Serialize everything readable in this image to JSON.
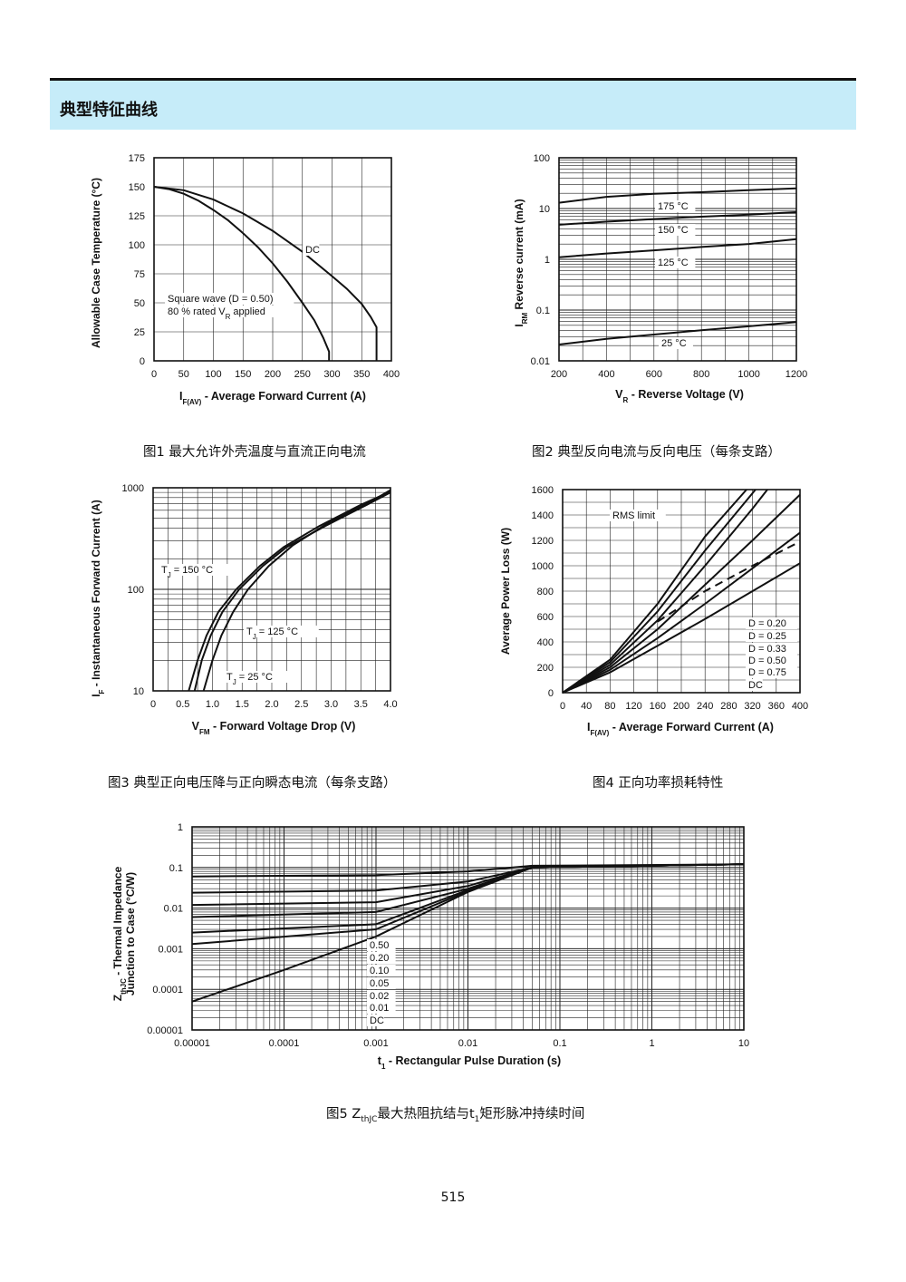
{
  "section": {
    "title": "典型特征曲线"
  },
  "page_number": "515",
  "chart_data": [
    {
      "id": "fig1",
      "type": "line",
      "caption": "图1 最大允许外壳温度与直流正向电流",
      "xlabel": "I_F(AV) - Average Forward Current (A)",
      "ylabel": "Allowable Case Temperature (°C)",
      "xlim": [
        0,
        400
      ],
      "ylim": [
        0,
        175
      ],
      "xticks": [
        0,
        50,
        100,
        150,
        200,
        250,
        300,
        350,
        400
      ],
      "yticks": [
        0,
        25,
        50,
        75,
        100,
        125,
        150,
        175
      ],
      "grid": true,
      "annotations": [
        "DC",
        "Square wave (D = 0.50)",
        "80 % rated V_R applied"
      ],
      "series": [
        {
          "name": "Square wave (D = 0.50)",
          "x": [
            0,
            25,
            50,
            75,
            100,
            125,
            150,
            175,
            200,
            225,
            250,
            270,
            285,
            295,
            295
          ],
          "y": [
            150,
            148,
            144,
            138,
            130,
            121,
            110,
            98,
            84,
            68,
            50,
            35,
            20,
            8,
            0
          ]
        },
        {
          "name": "DC",
          "x": [
            0,
            50,
            100,
            150,
            200,
            250,
            300,
            325,
            350,
            365,
            375,
            375
          ],
          "y": [
            150,
            147,
            139,
            127,
            112,
            94,
            73,
            62,
            49,
            38,
            29,
            0
          ]
        }
      ]
    },
    {
      "id": "fig2",
      "type": "line",
      "caption": "图2 典型反向电流与反向电压（每条支路）",
      "xlabel": "V_R - Reverse Voltage (V)",
      "ylabel": "I_RM Reverse current (mA)",
      "yscale": "log",
      "xlim": [
        200,
        1200
      ],
      "ylim": [
        0.01,
        100
      ],
      "xticks": [
        200,
        400,
        600,
        800,
        1000,
        1200
      ],
      "yticks": [
        "0.01",
        "0.1",
        "1",
        "10",
        "100"
      ],
      "grid": true,
      "series": [
        {
          "name": "175 °C",
          "x": [
            200,
            400,
            600,
            800,
            1000,
            1200
          ],
          "y": [
            13,
            17,
            19.5,
            21,
            23,
            25
          ]
        },
        {
          "name": "150 °C",
          "x": [
            200,
            400,
            600,
            800,
            1000,
            1200
          ],
          "y": [
            4.8,
            5.5,
            6.2,
            6.9,
            7.6,
            8.5
          ]
        },
        {
          "name": "125 °C",
          "x": [
            200,
            400,
            600,
            800,
            1000,
            1200
          ],
          "y": [
            1.1,
            1.3,
            1.5,
            1.75,
            2.0,
            2.5
          ]
        },
        {
          "name": "25 °C",
          "x": [
            200,
            400,
            600,
            800,
            1000,
            1200
          ],
          "y": [
            0.021,
            0.027,
            0.033,
            0.04,
            0.048,
            0.058
          ]
        }
      ]
    },
    {
      "id": "fig3",
      "type": "line",
      "caption": "图3 典型正向电压降与正向瞬态电流（每条支路）",
      "xlabel": "V_FM - Forward Voltage Drop (V)",
      "ylabel": "I_F - Instantaneous Forward Current (A)",
      "yscale": "log",
      "xlim": [
        0,
        4.0
      ],
      "ylim": [
        10,
        1000
      ],
      "xticks": [
        "0",
        "0.5",
        "1.0",
        "1.5",
        "2.0",
        "2.5",
        "3.0",
        "3.5",
        "4.0"
      ],
      "yticks": [
        "10",
        "100",
        "1000"
      ],
      "grid": true,
      "series": [
        {
          "name": "T_J = 150 °C",
          "x": [
            0.6,
            0.75,
            0.9,
            1.1,
            1.4,
            1.8,
            2.2,
            2.8,
            3.5,
            4.0
          ],
          "y": [
            10,
            20,
            35,
            60,
            100,
            170,
            260,
            420,
            680,
            920
          ]
        },
        {
          "name": "T_J = 125 °C",
          "x": [
            0.7,
            0.82,
            0.97,
            1.17,
            1.45,
            1.85,
            2.25,
            2.9,
            3.6,
            4.0
          ],
          "y": [
            10,
            20,
            35,
            60,
            100,
            170,
            260,
            420,
            680,
            900
          ]
        },
        {
          "name": "T_J = 25 °C",
          "x": [
            0.85,
            1.0,
            1.15,
            1.35,
            1.6,
            1.95,
            2.35,
            2.95,
            3.65,
            4.0
          ],
          "y": [
            10,
            20,
            35,
            60,
            100,
            170,
            270,
            450,
            720,
            950
          ]
        }
      ]
    },
    {
      "id": "fig4",
      "type": "line",
      "caption": "图4 正向功率损耗特性",
      "xlabel": "I_F(AV) - Average Forward Current (A)",
      "ylabel": "Average Power Loss (W)",
      "xlim": [
        0,
        400
      ],
      "ylim": [
        0,
        1600
      ],
      "xticks": [
        0,
        40,
        80,
        120,
        160,
        200,
        240,
        280,
        320,
        360,
        400
      ],
      "yticks": [
        0,
        200,
        400,
        600,
        800,
        1000,
        1200,
        1400,
        1600
      ],
      "grid": true,
      "annotations": [
        "RMS limit"
      ],
      "series": [
        {
          "name": "D = 0.20",
          "x": [
            0,
            80,
            160,
            240,
            310
          ],
          "y": [
            0,
            260,
            700,
            1230,
            1600
          ]
        },
        {
          "name": "D = 0.25",
          "x": [
            0,
            80,
            160,
            240,
            325
          ],
          "y": [
            0,
            240,
            640,
            1120,
            1600
          ]
        },
        {
          "name": "D = 0.33",
          "x": [
            0,
            80,
            160,
            240,
            320,
            345
          ],
          "y": [
            0,
            220,
            570,
            1000,
            1450,
            1600
          ]
        },
        {
          "name": "D = 0.50",
          "x": [
            0,
            80,
            160,
            240,
            320,
            400
          ],
          "y": [
            0,
            200,
            500,
            850,
            1200,
            1560
          ]
        },
        {
          "name": "D = 0.75",
          "x": [
            0,
            80,
            160,
            240,
            320,
            400
          ],
          "y": [
            0,
            180,
            430,
            700,
            980,
            1260
          ]
        },
        {
          "name": "DC",
          "x": [
            0,
            80,
            160,
            240,
            320,
            400
          ],
          "y": [
            0,
            160,
            370,
            580,
            800,
            1020
          ]
        },
        {
          "name": "RMS limit",
          "x": [
            160,
            240,
            320,
            400
          ],
          "y": [
            560,
            800,
            1000,
            1190
          ]
        }
      ]
    },
    {
      "id": "fig5",
      "type": "line",
      "caption_prefix": "图5 Z",
      "caption_sub": "thJC",
      "caption_mid": "最大热阻抗结与t",
      "caption_sub2": "1",
      "caption_suffix": "矩形脉冲持续时间",
      "xlabel": "t_1 - Rectangular Pulse Duration (s)",
      "ylabel": "Z_thJC - Thermal Impedance Junction to Case (°C/W)",
      "xscale": "log",
      "yscale": "log",
      "xlim": [
        1e-05,
        10
      ],
      "ylim": [
        1e-05,
        1
      ],
      "xticks": [
        "0.00001",
        "0.0001",
        "0.001",
        "0.01",
        "0.1",
        "1",
        "10"
      ],
      "yticks": [
        "0.00001",
        "0.0001",
        "0.001",
        "0.01",
        "0.1",
        "1"
      ],
      "grid": true,
      "series": [
        {
          "name": "0.50",
          "x": [
            1e-05,
            0.001,
            0.01,
            0.05,
            10
          ],
          "y": [
            0.06,
            0.065,
            0.08,
            0.11,
            0.12
          ]
        },
        {
          "name": "0.20",
          "x": [
            1e-05,
            0.001,
            0.01,
            0.05,
            10
          ],
          "y": [
            0.024,
            0.027,
            0.045,
            0.1,
            0.12
          ]
        },
        {
          "name": "0.10",
          "x": [
            1e-05,
            0.001,
            0.01,
            0.05,
            10
          ],
          "y": [
            0.012,
            0.014,
            0.035,
            0.1,
            0.12
          ]
        },
        {
          "name": "0.05",
          "x": [
            1e-05,
            0.001,
            0.01,
            0.05,
            10
          ],
          "y": [
            0.006,
            0.008,
            0.03,
            0.1,
            0.12
          ]
        },
        {
          "name": "0.02",
          "x": [
            1e-05,
            0.001,
            0.01,
            0.05,
            10
          ],
          "y": [
            0.0025,
            0.004,
            0.028,
            0.1,
            0.12
          ]
        },
        {
          "name": "0.01",
          "x": [
            1e-05,
            0.001,
            0.01,
            0.05,
            10
          ],
          "y": [
            0.0013,
            0.003,
            0.026,
            0.1,
            0.12
          ]
        },
        {
          "name": "DC",
          "x": [
            1e-05,
            0.0001,
            0.001,
            0.01,
            0.05,
            10
          ],
          "y": [
            5e-05,
            0.0003,
            0.002,
            0.025,
            0.1,
            0.12
          ]
        }
      ]
    }
  ]
}
